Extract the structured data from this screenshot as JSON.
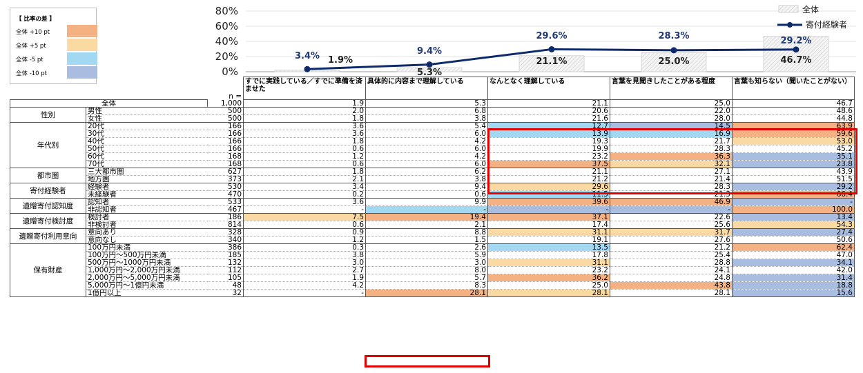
{
  "chart_data": [
    {
      "type": "bar",
      "categories": [
        "すでに実践している／すでに準備を済ませた",
        "具体的に内容まで理解している",
        "なんとなく理解している",
        "言葉を見聞きしたことがある程度",
        "言葉も知らない（聞いたことがない）"
      ],
      "y_ticks": [
        "80%",
        "60%",
        "40%",
        "20%",
        "0%"
      ],
      "ylim": [
        0,
        80
      ],
      "series": [
        {
          "name": "全体",
          "type": "bar",
          "values": [
            1.9,
            5.3,
            21.1,
            25.0,
            46.7
          ],
          "labels": [
            "1.9%",
            "5.3%",
            "21.1%",
            "25.0%",
            "46.7%"
          ],
          "color": "#f0f0f0"
        },
        {
          "name": "寄付経験者",
          "type": "line",
          "values": [
            3.4,
            9.4,
            29.6,
            28.3,
            29.2
          ],
          "labels": [
            "3.4%",
            "9.4%",
            "29.6%",
            "28.3%",
            "29.2%"
          ],
          "color": "#0e2a6b"
        }
      ]
    },
    {
      "type": "table",
      "columns": [
        "すでに実践している／すでに準備を済ませた",
        "具体的に内容まで理解している",
        "なんとなく理解している",
        "言葉を見聞きしたことがある程度",
        "言葉も知らない（聞いたことがない）"
      ]
    }
  ],
  "legend_diff": {
    "title": "【 比率の差 】",
    "items": [
      {
        "label": "全体 +10 pt",
        "color": "#f4b183"
      },
      {
        "label": "全体 +5 pt",
        "color": "#fbd9a3"
      },
      {
        "label": "全体 -5 pt",
        "color": "#a3d8f2"
      },
      {
        "label": "全体 -10 pt",
        "color": "#a8bde0"
      }
    ]
  },
  "n_label": "n =",
  "table": {
    "groups": [
      {
        "name": "",
        "rows": [
          {
            "label": "全体",
            "n": "1,000",
            "v": [
              "1.9",
              "5.3",
              "21.1",
              "25.0",
              "46.7"
            ],
            "c": [
              "",
              "",
              "",
              "",
              ""
            ]
          }
        ]
      },
      {
        "name": "性別",
        "rows": [
          {
            "label": "男性",
            "n": "500",
            "v": [
              "2.0",
              "6.8",
              "20.6",
              "22.0",
              "48.6"
            ],
            "c": [
              "",
              "",
              "",
              "",
              ""
            ]
          },
          {
            "label": "女性",
            "n": "500",
            "v": [
              "1.8",
              "3.8",
              "21.6",
              "28.0",
              "44.8"
            ],
            "c": [
              "",
              "",
              "",
              "",
              ""
            ]
          }
        ]
      },
      {
        "name": "年代別",
        "rows": [
          {
            "label": "20代",
            "n": "166",
            "v": [
              "3.6",
              "5.4",
              "12.7",
              "14.5",
              "63.9"
            ],
            "c": [
              "",
              "",
              "m5",
              "m10",
              "p10"
            ]
          },
          {
            "label": "30代",
            "n": "166",
            "v": [
              "3.6",
              "6.0",
              "13.9",
              "16.9",
              "59.6"
            ],
            "c": [
              "",
              "",
              "m5",
              "m5",
              "p10"
            ]
          },
          {
            "label": "40代",
            "n": "166",
            "v": [
              "1.8",
              "4.2",
              "19.3",
              "21.7",
              "53.0"
            ],
            "c": [
              "",
              "",
              "",
              "",
              "p5"
            ]
          },
          {
            "label": "50代",
            "n": "166",
            "v": [
              "0.6",
              "6.0",
              "19.9",
              "28.3",
              "45.2"
            ],
            "c": [
              "",
              "",
              "",
              "",
              ""
            ]
          },
          {
            "label": "60代",
            "n": "168",
            "v": [
              "1.2",
              "4.2",
              "23.2",
              "36.3",
              "35.1"
            ],
            "c": [
              "",
              "",
              "",
              "p10",
              "m10"
            ]
          },
          {
            "label": "70代",
            "n": "168",
            "v": [
              "0.6",
              "6.0",
              "37.5",
              "32.1",
              "23.8"
            ],
            "c": [
              "",
              "",
              "p10",
              "p5",
              "m10"
            ]
          }
        ]
      },
      {
        "name": "都市圏",
        "rows": [
          {
            "label": "三大都市圏",
            "n": "627",
            "v": [
              "1.8",
              "6.2",
              "21.1",
              "27.1",
              "43.9"
            ],
            "c": [
              "",
              "",
              "",
              "",
              ""
            ]
          },
          {
            "label": "地方圏",
            "n": "373",
            "v": [
              "2.1",
              "3.8",
              "21.2",
              "21.4",
              "51.5"
            ],
            "c": [
              "",
              "",
              "",
              "",
              ""
            ]
          }
        ]
      },
      {
        "name": "寄付経験者",
        "rows": [
          {
            "label": "経験者",
            "n": "530",
            "v": [
              "3.4",
              "9.4",
              "29.6",
              "28.3",
              "29.2"
            ],
            "c": [
              "",
              "",
              "p5",
              "",
              "m10"
            ]
          },
          {
            "label": "未経験者",
            "n": "470",
            "v": [
              "0.2",
              "0.6",
              "11.5",
              "21.3",
              "66.4"
            ],
            "c": [
              "",
              "",
              "m5",
              "",
              "p10"
            ]
          }
        ]
      },
      {
        "name": "遺贈寄付認知度",
        "rows": [
          {
            "label": "認知者",
            "n": "533",
            "v": [
              "3.6",
              "9.9",
              "39.6",
              "46.9",
              "-"
            ],
            "c": [
              "",
              "",
              "p10",
              "p10",
              "m10"
            ]
          },
          {
            "label": "非認知者",
            "n": "467",
            "v": [
              "-",
              "-",
              "-",
              "-",
              "100.0"
            ],
            "c": [
              "",
              "m5",
              "m10",
              "m10",
              "p10"
            ]
          }
        ]
      },
      {
        "name": "遺贈寄付検討度",
        "rows": [
          {
            "label": "検討者",
            "n": "186",
            "v": [
              "7.5",
              "19.4",
              "37.1",
              "22.6",
              "13.4"
            ],
            "c": [
              "p5",
              "p10",
              "p10",
              "",
              "m10"
            ]
          },
          {
            "label": "非検討者",
            "n": "814",
            "v": [
              "0.6",
              "2.1",
              "17.4",
              "25.6",
              "54.3"
            ],
            "c": [
              "",
              "",
              "",
              "",
              "p5"
            ]
          }
        ]
      },
      {
        "name": "遺贈寄付利用意向",
        "rows": [
          {
            "label": "意向あり",
            "n": "328",
            "v": [
              "0.9",
              "8.8",
              "31.1",
              "31.7",
              "27.4"
            ],
            "c": [
              "",
              "",
              "p5",
              "p5",
              "m10"
            ]
          },
          {
            "label": "意向なし",
            "n": "340",
            "v": [
              "1.2",
              "1.5",
              "19.1",
              "27.6",
              "50.6"
            ],
            "c": [
              "",
              "",
              "",
              "",
              ""
            ]
          }
        ]
      },
      {
        "name": "保有財産",
        "rows": [
          {
            "label": "100万円未満",
            "n": "386",
            "v": [
              "0.3",
              "2.6",
              "13.5",
              "21.2",
              "62.4"
            ],
            "c": [
              "",
              "",
              "m5",
              "",
              "p10"
            ]
          },
          {
            "label": "100万円～500万円未満",
            "n": "185",
            "v": [
              "3.8",
              "5.9",
              "17.8",
              "25.4",
              "47.0"
            ],
            "c": [
              "",
              "",
              "",
              "",
              ""
            ]
          },
          {
            "label": "500万円～1000万円未満",
            "n": "132",
            "v": [
              "3.0",
              "3.0",
              "31.1",
              "28.8",
              "34.1"
            ],
            "c": [
              "",
              "",
              "p5",
              "",
              "m10"
            ]
          },
          {
            "label": "1,000万円～2,000万円未満",
            "n": "112",
            "v": [
              "2.7",
              "8.0",
              "23.2",
              "24.1",
              "42.0"
            ],
            "c": [
              "",
              "",
              "",
              "",
              ""
            ]
          },
          {
            "label": "2,000万円～5,000万円未満",
            "n": "105",
            "v": [
              "1.9",
              "5.7",
              "36.2",
              "24.8",
              "31.4"
            ],
            "c": [
              "",
              "",
              "p10",
              "",
              "m10"
            ]
          },
          {
            "label": "5,000万円～1億円未満",
            "n": "48",
            "v": [
              "4.2",
              "8.3",
              "25.0",
              "43.8",
              "18.8"
            ],
            "c": [
              "",
              "",
              "",
              "p10",
              "m10"
            ]
          },
          {
            "label": "1億円以上",
            "n": "32",
            "v": [
              "-",
              "28.1",
              "28.1",
              "28.1",
              "15.6"
            ],
            "c": [
              "",
              "p10",
              "p5",
              "",
              "m10"
            ]
          }
        ]
      }
    ]
  }
}
